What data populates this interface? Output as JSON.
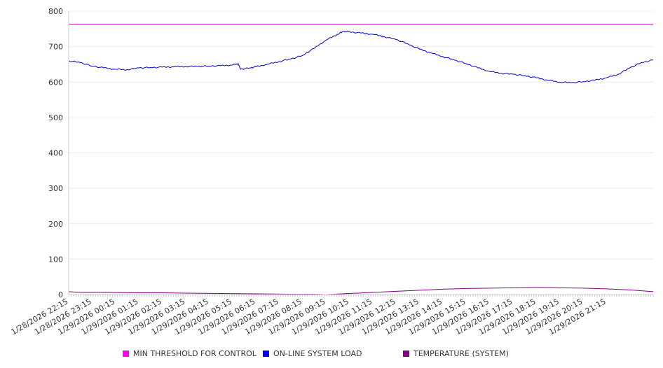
{
  "chart_data": {
    "type": "line",
    "ylim": [
      0,
      800
    ],
    "yticks": [
      0,
      100,
      200,
      300,
      400,
      500,
      600,
      700,
      800
    ],
    "x_tick_labels": [
      "1/28/2026 22:15",
      "1/28/2026 23:15",
      "1/29/2026 00:15",
      "1/29/2026 01:15",
      "1/29/2026 02:15",
      "1/29/2026 03:15",
      "1/29/2026 04:15",
      "1/29/2026 05:15",
      "1/29/2026 06:15",
      "1/29/2026 07:15",
      "1/29/2026 08:15",
      "1/29/2026 09:15",
      "1/29/2026 10:15",
      "1/29/2026 11:15",
      "1/29/2026 12:15",
      "1/29/2026 13:15",
      "1/29/2026 14:15",
      "1/29/2026 15:15",
      "1/29/2026 16:15",
      "1/29/2026 17:15",
      "1/29/2026 18:15",
      "1/29/2026 19:15",
      "1/29/2026 20:15",
      "1/29/2026 21:15"
    ],
    "x_hours": [
      22.0,
      47.0
    ],
    "grid": true,
    "legend_position": "bottom",
    "series": [
      {
        "name": "MIN THRESHOLD FOR CONTROL",
        "color": "#b000b0",
        "points": [
          [
            22.0,
            763
          ],
          [
            47.0,
            763
          ]
        ]
      },
      {
        "name": "ON-LINE SYSTEM LOAD",
        "color": "#0000c8",
        "points": [
          [
            22.0,
            660
          ],
          [
            22.5,
            655
          ],
          [
            23.0,
            645
          ],
          [
            23.5,
            640
          ],
          [
            24.0,
            636
          ],
          [
            24.5,
            635
          ],
          [
            25.0,
            640
          ],
          [
            25.5,
            641
          ],
          [
            26.0,
            642
          ],
          [
            26.5,
            643
          ],
          [
            27.0,
            644
          ],
          [
            27.5,
            644
          ],
          [
            28.0,
            645
          ],
          [
            28.5,
            646
          ],
          [
            29.0,
            648
          ],
          [
            29.25,
            652
          ],
          [
            29.35,
            636
          ],
          [
            29.75,
            640
          ],
          [
            30.0,
            643
          ],
          [
            30.5,
            650
          ],
          [
            31.0,
            658
          ],
          [
            31.5,
            665
          ],
          [
            32.0,
            675
          ],
          [
            32.5,
            695
          ],
          [
            33.0,
            718
          ],
          [
            33.5,
            735
          ],
          [
            33.75,
            743
          ],
          [
            34.0,
            742
          ],
          [
            34.5,
            738
          ],
          [
            35.0,
            735
          ],
          [
            35.5,
            728
          ],
          [
            36.0,
            720
          ],
          [
            36.5,
            708
          ],
          [
            37.0,
            693
          ],
          [
            37.5,
            682
          ],
          [
            38.0,
            672
          ],
          [
            38.5,
            662
          ],
          [
            39.0,
            652
          ],
          [
            39.5,
            640
          ],
          [
            40.0,
            630
          ],
          [
            40.5,
            625
          ],
          [
            41.0,
            622
          ],
          [
            41.5,
            618
          ],
          [
            42.0,
            612
          ],
          [
            42.5,
            605
          ],
          [
            43.0,
            600
          ],
          [
            43.5,
            598
          ],
          [
            44.0,
            601
          ],
          [
            44.5,
            605
          ],
          [
            45.0,
            612
          ],
          [
            45.5,
            622
          ],
          [
            46.0,
            640
          ],
          [
            46.5,
            655
          ],
          [
            47.0,
            662
          ]
        ]
      },
      {
        "name": "TEMPERATURE (SYSTEM)",
        "color": "#800080",
        "points": [
          [
            22.0,
            8
          ],
          [
            22.5,
            6
          ],
          [
            23.5,
            6
          ],
          [
            25.0,
            5
          ],
          [
            26.0,
            5
          ],
          [
            27.0,
            4
          ],
          [
            28.5,
            3
          ],
          [
            30.0,
            2
          ],
          [
            31.5,
            1
          ],
          [
            32.5,
            1
          ],
          [
            33.0,
            0
          ],
          [
            34.0,
            3
          ],
          [
            35.0,
            6
          ],
          [
            36.0,
            9
          ],
          [
            37.0,
            12
          ],
          [
            38.0,
            15
          ],
          [
            39.0,
            17
          ],
          [
            40.0,
            18
          ],
          [
            41.0,
            19
          ],
          [
            42.0,
            20
          ],
          [
            42.5,
            20
          ],
          [
            43.0,
            19
          ],
          [
            44.0,
            18
          ],
          [
            45.0,
            16
          ],
          [
            46.0,
            13
          ],
          [
            47.0,
            8
          ]
        ]
      }
    ]
  }
}
